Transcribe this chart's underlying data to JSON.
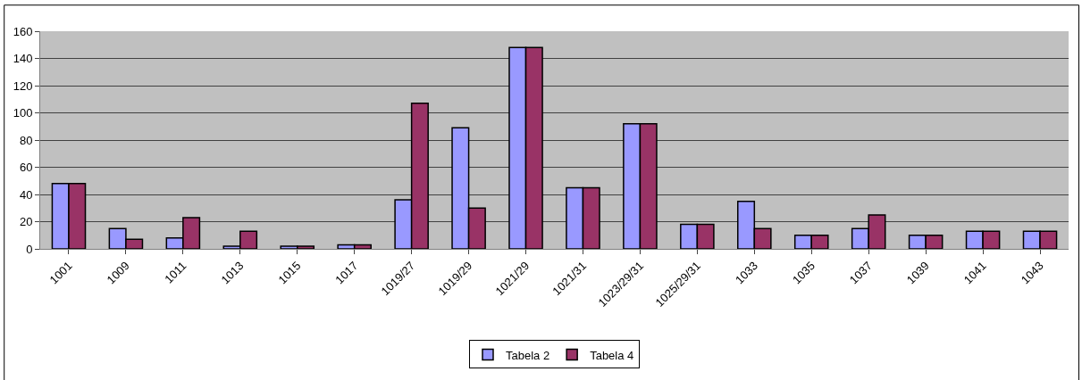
{
  "chart_data": {
    "type": "bar",
    "categories": [
      "1001",
      "1009",
      "1011",
      "1013",
      "1015",
      "1017",
      "1019/27",
      "1019/29",
      "1021/29",
      "1021/31",
      "1023/29/31",
      "1025/29/31",
      "1033",
      "1035",
      "1037",
      "1039",
      "1041",
      "1043"
    ],
    "series": [
      {
        "name": "Tabela 2",
        "color": "#9999ff",
        "values": [
          48,
          15,
          8,
          2,
          2,
          3,
          36,
          89,
          148,
          45,
          92,
          18,
          35,
          10,
          15,
          10,
          13,
          13
        ]
      },
      {
        "name": "Tabela 4",
        "color": "#993366",
        "values": [
          48,
          7,
          23,
          13,
          2,
          3,
          107,
          30,
          148,
          45,
          92,
          18,
          15,
          10,
          25,
          10,
          13,
          13
        ]
      }
    ],
    "ylim": [
      0,
      160
    ],
    "yticks": [
      0,
      20,
      40,
      60,
      80,
      100,
      120,
      140,
      160
    ],
    "grid": "y",
    "legend": "bottom"
  }
}
